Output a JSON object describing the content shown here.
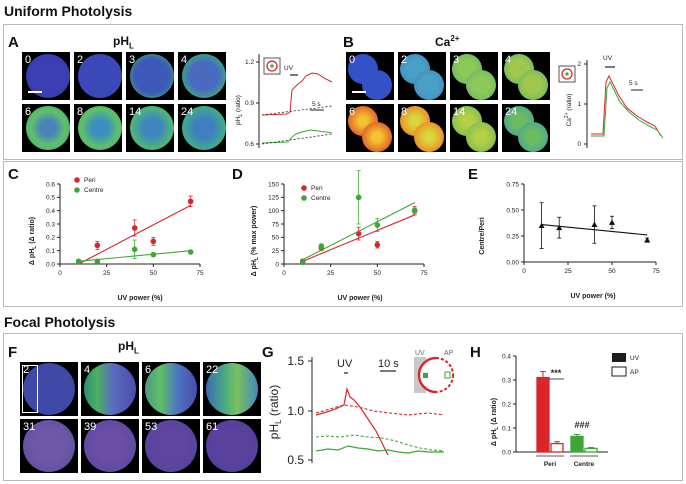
{
  "section_uniform": "Uniform Photolysis",
  "section_focal": "Focal Photolysis",
  "colors": {
    "peri": "#d8262b",
    "centre": "#3ea636",
    "border": "#b9b9b9"
  },
  "panelA": {
    "letter": "A",
    "title": "pH",
    "title_sub": "L",
    "frames": [
      "0",
      "2",
      "3",
      "4",
      "6",
      "8",
      "14",
      "24"
    ],
    "trace": {
      "y_ticks": [
        "1.2",
        "0.9",
        "0.6"
      ],
      "ylabel": "pH",
      "ylabel_sub": "L",
      "ylabel_tail": " (ratio)",
      "uv_label": "UV",
      "scale_label": "5 s"
    }
  },
  "panelB": {
    "letter": "B",
    "title": "Ca",
    "title_sup": "2+",
    "frames": [
      "0",
      "2",
      "3",
      "4",
      "6",
      "8",
      "14",
      "24"
    ],
    "trace": {
      "y_ticks": [
        "2",
        "1",
        "0"
      ],
      "ylabel": "Ca",
      "ylabel_sup": "2+",
      "ylabel_tail": " (ratio)",
      "uv_label": "UV",
      "scale_label": "5 s"
    }
  },
  "panelC": {
    "letter": "C",
    "legend": [
      "Peri",
      "Centre"
    ],
    "ylabel": "Δ pH",
    "ylabel_sub": "L",
    "ylabel_tail": " (Δ ratio)",
    "xlabel": "UV power (%)",
    "x_ticks": [
      "0",
      "25",
      "50",
      "75"
    ],
    "y_ticks": [
      "0.0",
      "0.1",
      "0.2",
      "0.3",
      "0.4",
      "0.5",
      "0.6"
    ]
  },
  "panelD": {
    "letter": "D",
    "legend": [
      "Peri",
      "Centre"
    ],
    "ylabel": "Δ pH",
    "ylabel_sub": "L",
    "ylabel_tail": " (% max power)",
    "xlabel": "UV power (%)",
    "x_ticks": [
      "0",
      "25",
      "50",
      "75"
    ],
    "y_ticks": [
      "0",
      "25",
      "50",
      "75",
      "100",
      "125",
      "150"
    ]
  },
  "panelE": {
    "letter": "E",
    "ylabel": "Centre/Peri",
    "xlabel": "UV power (%)",
    "x_ticks": [
      "0",
      "25",
      "50",
      "75"
    ],
    "y_ticks": [
      "0.00",
      "0.25",
      "0.50",
      "0.75"
    ]
  },
  "panelF": {
    "letter": "F",
    "title": "pH",
    "title_sub": "L",
    "frames": [
      "2",
      "4",
      "6",
      "22",
      "31",
      "39",
      "53",
      "61"
    ]
  },
  "panelG": {
    "letter": "G",
    "y_ticks": [
      "1.5",
      "1.0",
      "0.5"
    ],
    "ylabel": "pH",
    "ylabel_sub": "L",
    "ylabel_tail": " (ratio)",
    "uv_label": "UV",
    "scale_label": "10 s",
    "inset_uv": "UV",
    "inset_ap": "AP"
  },
  "panelH": {
    "letter": "H",
    "ylabel": "Δ pH",
    "ylabel_sub": "L",
    "ylabel_tail": " (Δ ratio)",
    "y_ticks": [
      "0.0",
      "0.1",
      "0.2",
      "0.3",
      "0.4"
    ],
    "groups": [
      "Peri",
      "Centre"
    ],
    "legend": [
      "UV",
      "AP"
    ],
    "sig_peri": "***",
    "sig_centre": "###"
  },
  "chart_data": [
    {
      "type": "scatter",
      "panel": "C",
      "xlabel": "UV power (%)",
      "ylabel": "Δ pHL (Δ ratio)",
      "xlim": [
        0,
        75
      ],
      "ylim": [
        0,
        0.6
      ],
      "series": [
        {
          "name": "Peri",
          "x": [
            10,
            20,
            40,
            50,
            70
          ],
          "y": [
            0.02,
            0.14,
            0.27,
            0.17,
            0.47
          ],
          "err": [
            0.01,
            0.03,
            0.06,
            0.03,
            0.04
          ],
          "fit": [
            [
              10,
              0.0
            ],
            [
              70,
              0.44
            ]
          ]
        },
        {
          "name": "Centre",
          "x": [
            10,
            20,
            40,
            50,
            70
          ],
          "y": [
            0.02,
            0.02,
            0.11,
            0.07,
            0.09
          ],
          "err": [
            0.01,
            0.01,
            0.07,
            0.01,
            0.01
          ],
          "fit": [
            [
              10,
              0.02
            ],
            [
              70,
              0.1
            ]
          ]
        }
      ]
    },
    {
      "type": "scatter",
      "panel": "D",
      "xlabel": "UV power (%)",
      "ylabel": "Δ pHL (% max power)",
      "xlim": [
        0,
        75
      ],
      "ylim": [
        0,
        150
      ],
      "series": [
        {
          "name": "Peri",
          "x": [
            10,
            20,
            40,
            50,
            70
          ],
          "y": [
            5,
            30,
            57,
            36,
            100
          ],
          "err": [
            2,
            5,
            12,
            6,
            8
          ],
          "fit": [
            [
              10,
              5
            ],
            [
              70,
              92
            ]
          ]
        },
        {
          "name": "Centre",
          "x": [
            10,
            20,
            40,
            50,
            70
          ],
          "y": [
            3,
            33,
            125,
            73,
            100
          ],
          "err": [
            2,
            5,
            50,
            12,
            5
          ],
          "fit": [
            [
              10,
              8
            ],
            [
              70,
              115
            ]
          ]
        }
      ]
    },
    {
      "type": "scatter",
      "panel": "E",
      "xlabel": "UV power (%)",
      "ylabel": "Centre/Peri",
      "xlim": [
        0,
        75
      ],
      "ylim": [
        0,
        0.75
      ],
      "series": [
        {
          "name": "",
          "x": [
            10,
            20,
            40,
            50,
            70
          ],
          "y": [
            0.35,
            0.33,
            0.36,
            0.38,
            0.21
          ],
          "err": [
            0.22,
            0.1,
            0.18,
            0.06,
            0.02
          ],
          "fit": [
            [
              10,
              0.36
            ],
            [
              70,
              0.26
            ]
          ]
        }
      ]
    },
    {
      "type": "bar",
      "panel": "H",
      "categories": [
        "Peri",
        "Centre"
      ],
      "ylabel": "Δ pHL (Δ ratio)",
      "ylim": [
        0,
        0.4
      ],
      "series": [
        {
          "name": "UV",
          "values": [
            0.31,
            0.065
          ],
          "err": [
            0.025,
            0.008
          ]
        },
        {
          "name": "AP",
          "values": [
            0.035,
            0.015
          ],
          "err": [
            0.008,
            0.004
          ]
        }
      ]
    }
  ]
}
